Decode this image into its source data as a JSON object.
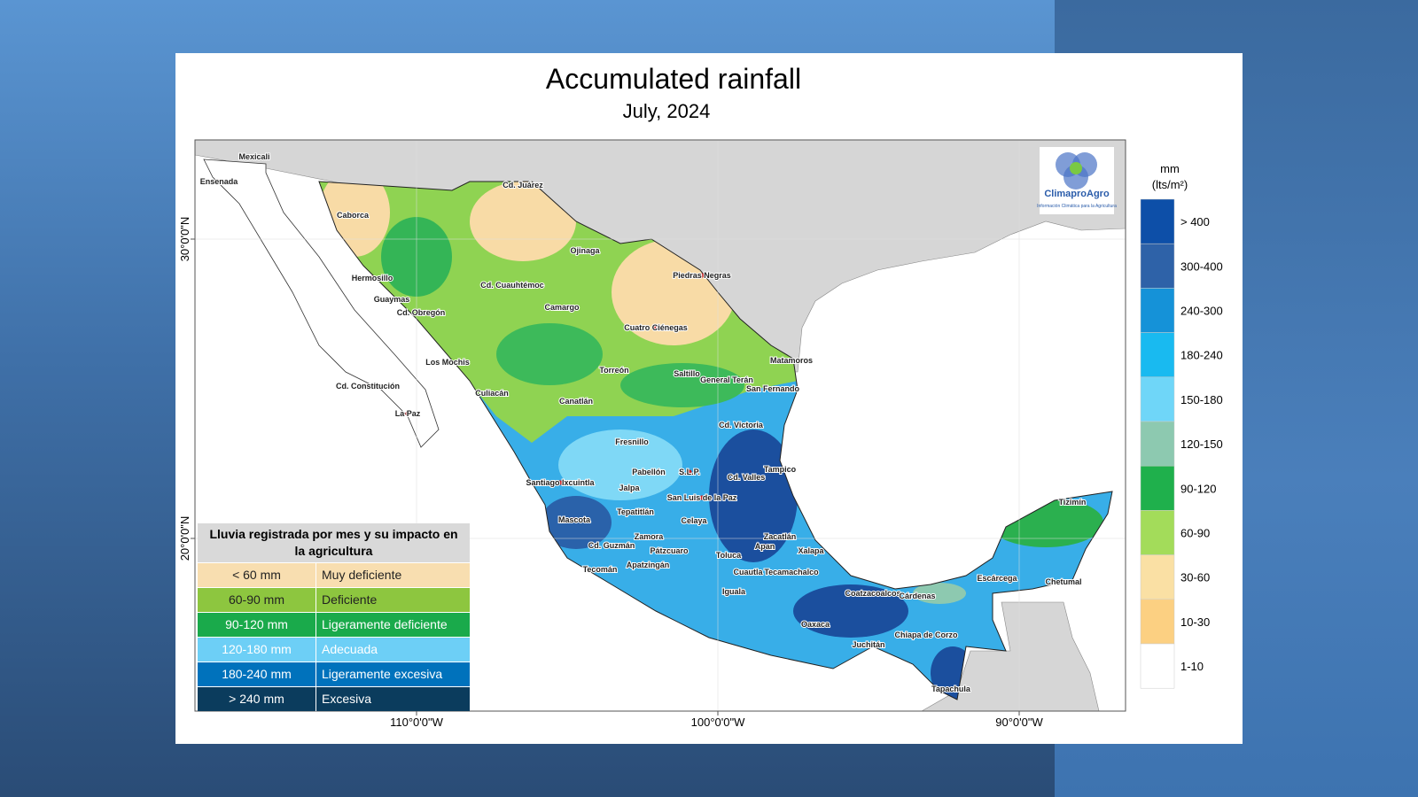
{
  "title": "Accumulated rainfall",
  "subtitle": "July, 2024",
  "colorbar": {
    "unit": "mm",
    "unit_detail": "(lts/m²)",
    "classes": [
      {
        "label": "> 400",
        "color": "#0d4fa8"
      },
      {
        "label": "300-400",
        "color": "#2e62a8"
      },
      {
        "label": "240-300",
        "color": "#1592d8"
      },
      {
        "label": "180-240",
        "color": "#19baf0"
      },
      {
        "label": "150-180",
        "color": "#6fd6f8"
      },
      {
        "label": "120-150",
        "color": "#8dc9b0"
      },
      {
        "label": "90-120",
        "color": "#1fb04c"
      },
      {
        "label": "60-90",
        "color": "#a3dc5a"
      },
      {
        "label": "30-60",
        "color": "#fae0a4"
      },
      {
        "label": "10-30",
        "color": "#fcd082"
      },
      {
        "label": "1-10",
        "color": "#ffffff"
      }
    ]
  },
  "legend": {
    "title": "Lluvia registrada por mes y su impacto en la agricultura",
    "rows": [
      {
        "range": "< 60 mm",
        "impact": "Muy deficiente",
        "color": "#f8deb0",
        "text_color": "#222222"
      },
      {
        "range": "60-90 mm",
        "impact": "Deficiente",
        "color": "#8dc63f",
        "text_color": "#222222"
      },
      {
        "range": "90-120 mm",
        "impact": "Ligeramente deficiente",
        "color": "#1aaa4b",
        "text_color": "#ffffff"
      },
      {
        "range": "120-180 mm",
        "impact": "Adecuada",
        "color": "#6dcff6",
        "text_color": "#ffffff"
      },
      {
        "range": "180-240 mm",
        "impact": "Ligeramente excesiva",
        "color": "#0072bc",
        "text_color": "#ffffff"
      },
      {
        "range": "> 240 mm",
        "impact": "Excesiva",
        "color": "#0b3c5d",
        "text_color": "#ffffff"
      }
    ]
  },
  "axes": {
    "x_labels": [
      "110°0'0\"W",
      "100°0'0\"W",
      "90°0'0\"W"
    ],
    "y_labels": [
      "30°0'0\"N",
      "20°0'0\"N"
    ]
  },
  "logo": {
    "name": "ClimaproAgro",
    "tagline": "Información Climática para la Agricultura"
  },
  "cities": [
    "Mexicali",
    "Ensenada",
    "Cd. Juárez",
    "Caborca",
    "Ojinaga",
    "Hermosillo",
    "Piedras Negras",
    "Cd. Cuauhtémoc",
    "Guaymas",
    "Camargo",
    "Cd. Obregón",
    "Cuatro Ciénegas",
    "Los Mochis",
    "Matamoros",
    "Torreón",
    "Saltillo",
    "General Terán",
    "Cd. Constitución",
    "San Fernando",
    "Culiacán",
    "Canatlán",
    "La Paz",
    "Cd. Victoria",
    "Fresnillo",
    "Tampico",
    "Cd. Valles",
    "Pabellón",
    "S.L.P.",
    "Santiago Ixcuintla",
    "Jalpa",
    "San Luis de la Paz",
    "Tepatitlán",
    "Celaya",
    "Mascota",
    "Zacatlán",
    "Zamora",
    "Cd. Guzmán",
    "Apan",
    "Pátzcuaro",
    "Xalapa",
    "Toluca",
    "Apatzingán",
    "Tecomán",
    "Cuautla",
    "Tecamachalco",
    "Iguala",
    "Coatzacoalcos",
    "Cárdenas",
    "Escárcega",
    "Tizimín",
    "Chetumal",
    "Oaxaca",
    "Chiapa de Corzo",
    "Juchitán",
    "Tapachula"
  ]
}
